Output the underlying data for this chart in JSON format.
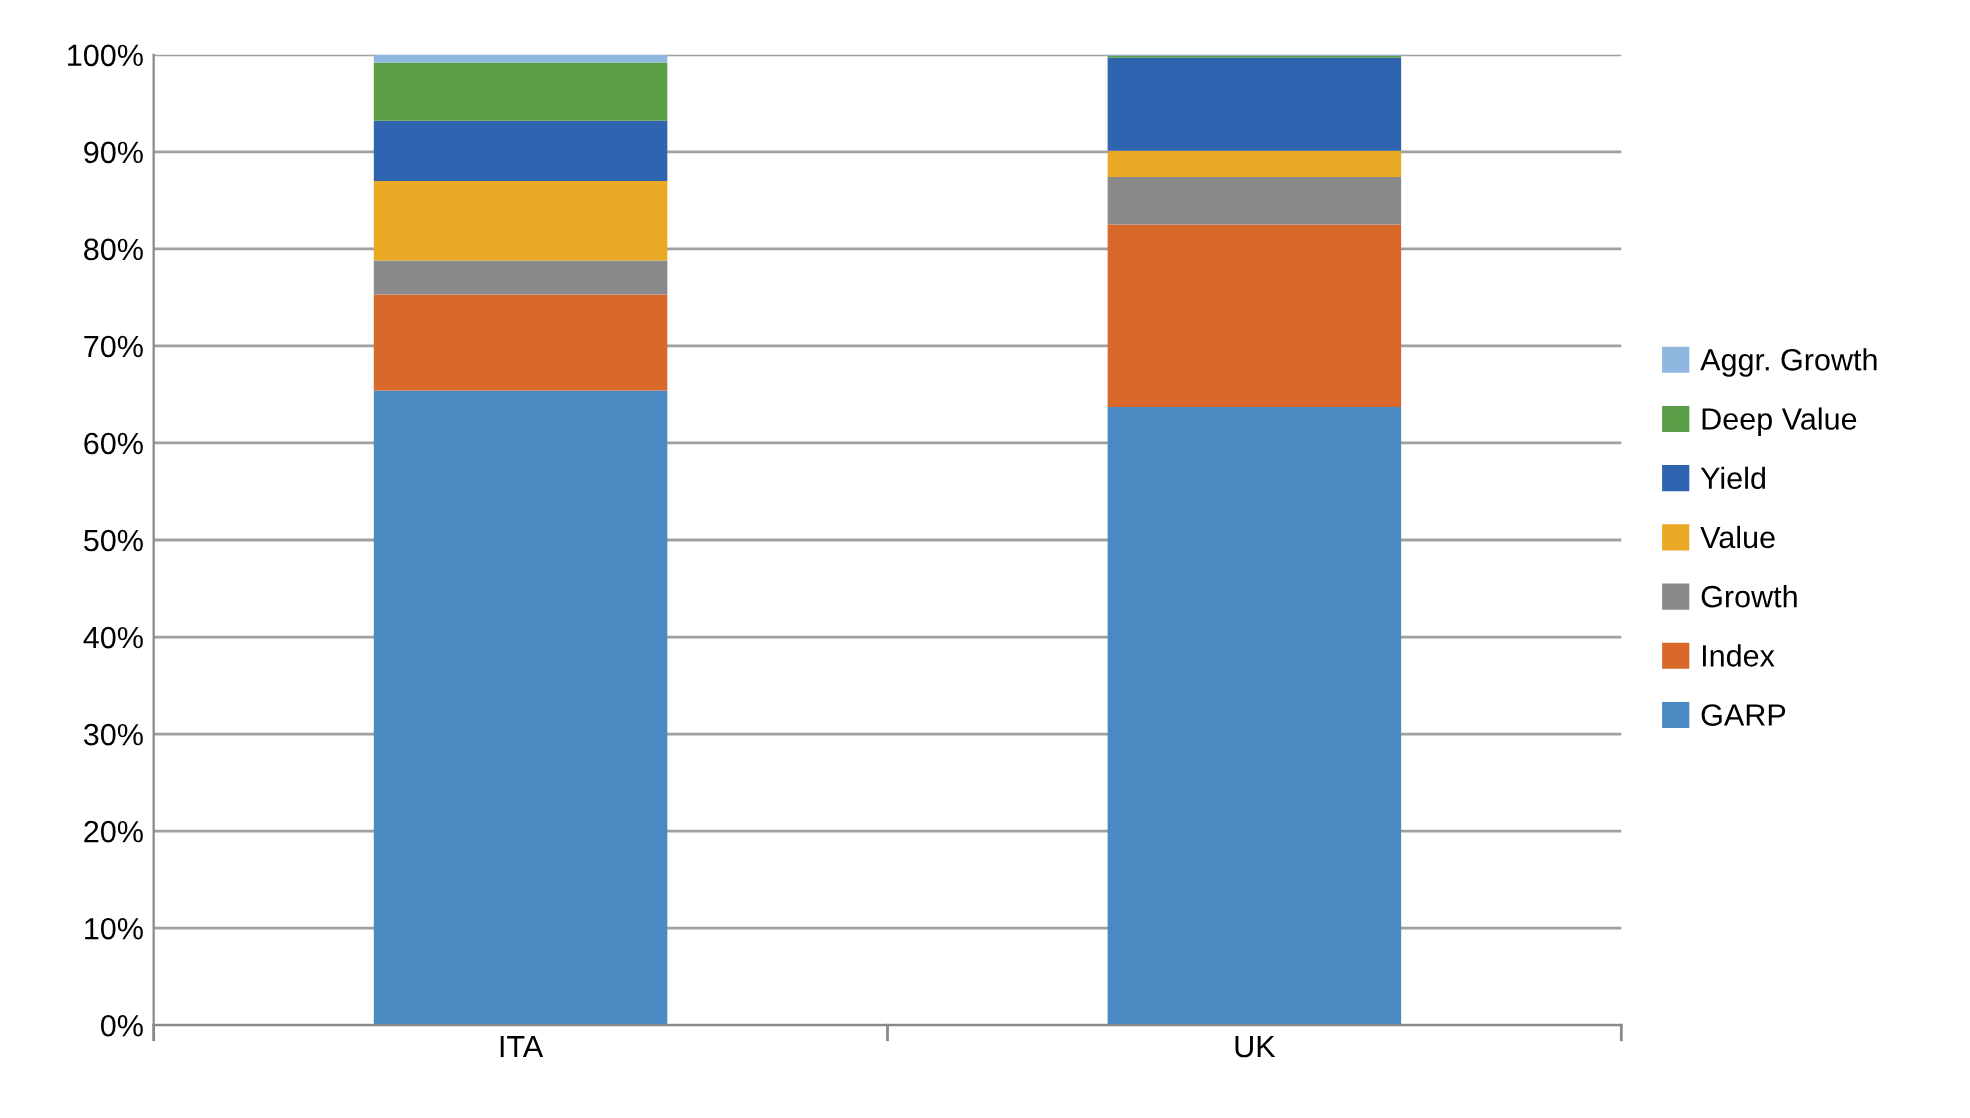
{
  "chart_data": {
    "type": "bar",
    "stacked": true,
    "categories": [
      "ITA",
      "UK"
    ],
    "series": [
      {
        "name": "GARP",
        "color": "#4a89c2",
        "values": [
          65.4,
          63.7
        ]
      },
      {
        "name": "Index",
        "color": "#d9692b",
        "values": [
          9.9,
          18.8
        ]
      },
      {
        "name": "Growth",
        "color": "#8a8a8a",
        "values": [
          3.5,
          4.9
        ]
      },
      {
        "name": "Value",
        "color": "#eaa925",
        "values": [
          8.2,
          2.7
        ]
      },
      {
        "name": "Yield",
        "color": "#2e64b0",
        "values": [
          6.2,
          9.6
        ]
      },
      {
        "name": "Deep Value",
        "color": "#5a9e48",
        "values": [
          6.0,
          0.2
        ]
      },
      {
        "name": "Aggr. Growth",
        "color": "#8fb7e0",
        "values": [
          0.8,
          0.1
        ]
      }
    ],
    "ylim": [
      0,
      100
    ],
    "yticks": [
      {
        "value": 0,
        "label": "0%"
      },
      {
        "value": 10,
        "label": "10%"
      },
      {
        "value": 20,
        "label": "20%"
      },
      {
        "value": 30,
        "label": "30%"
      },
      {
        "value": 40,
        "label": "40%"
      },
      {
        "value": 50,
        "label": "50%"
      },
      {
        "value": 60,
        "label": "60%"
      },
      {
        "value": 70,
        "label": "70%"
      },
      {
        "value": 80,
        "label": "80%"
      },
      {
        "value": 90,
        "label": "90%"
      },
      {
        "value": 100,
        "label": "100%"
      }
    ],
    "grid": "y",
    "legend": "right"
  }
}
